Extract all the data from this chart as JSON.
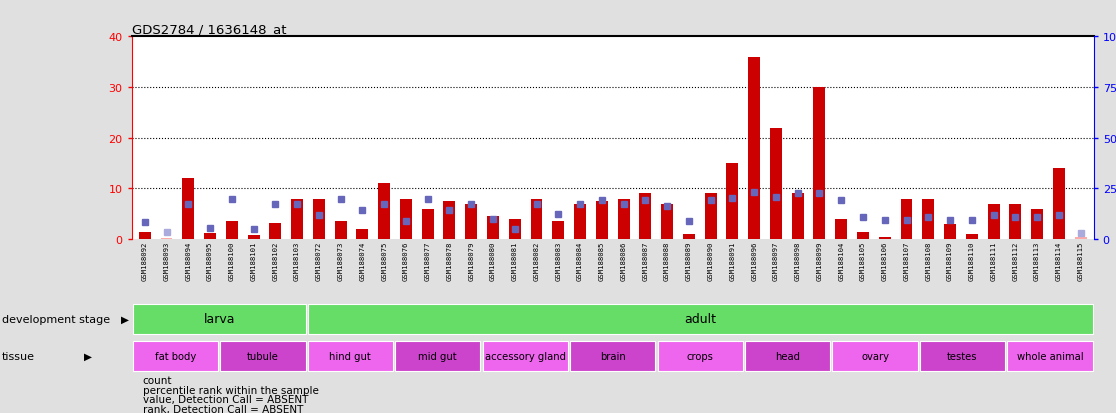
{
  "title": "GDS2784 / 1636148_at",
  "samples": [
    "GSM188092",
    "GSM188093",
    "GSM188094",
    "GSM188095",
    "GSM188100",
    "GSM188101",
    "GSM188102",
    "GSM188103",
    "GSM188072",
    "GSM188073",
    "GSM188074",
    "GSM188075",
    "GSM188076",
    "GSM188077",
    "GSM188078",
    "GSM188079",
    "GSM188080",
    "GSM188081",
    "GSM188082",
    "GSM188083",
    "GSM188084",
    "GSM188085",
    "GSM188086",
    "GSM188087",
    "GSM188088",
    "GSM188089",
    "GSM188090",
    "GSM188091",
    "GSM188096",
    "GSM188097",
    "GSM188098",
    "GSM188099",
    "GSM188104",
    "GSM188105",
    "GSM188106",
    "GSM188107",
    "GSM188108",
    "GSM188109",
    "GSM188110",
    "GSM188111",
    "GSM188112",
    "GSM188113",
    "GSM188114",
    "GSM188115"
  ],
  "counts": [
    1.5,
    0.3,
    12,
    1.2,
    3.5,
    0.8,
    3.2,
    8,
    8,
    3.5,
    2,
    11,
    8,
    6,
    7.5,
    7,
    4.5,
    4,
    8,
    3.5,
    7,
    7.5,
    8,
    9,
    7,
    1,
    9,
    15,
    36,
    22,
    9,
    30,
    4,
    1.5,
    0.5,
    8,
    8,
    3,
    1,
    7,
    7,
    6,
    14,
    0.5
  ],
  "ranks": [
    8.5,
    3.5,
    17.5,
    5.5,
    20,
    5,
    17.5,
    17.5,
    12,
    20,
    14.5,
    17.5,
    9,
    20,
    14.5,
    17.5,
    10,
    5,
    17.5,
    12.5,
    17.5,
    19.5,
    17.5,
    19.5,
    16.5,
    9,
    19.5,
    20.5,
    23,
    21,
    22.5,
    22.5,
    19.5,
    11,
    9.5,
    9.5,
    11,
    9.5,
    9.5,
    12,
    11,
    11,
    12,
    3
  ],
  "absent_mask": [
    false,
    true,
    false,
    false,
    false,
    false,
    false,
    false,
    false,
    false,
    false,
    false,
    false,
    false,
    false,
    false,
    false,
    false,
    false,
    false,
    false,
    false,
    false,
    false,
    false,
    false,
    false,
    false,
    false,
    false,
    false,
    false,
    false,
    false,
    false,
    false,
    false,
    false,
    false,
    false,
    false,
    false,
    false,
    true
  ],
  "development_stages": [
    {
      "label": "larva",
      "start": 0,
      "end": 8
    },
    {
      "label": "adult",
      "start": 8,
      "end": 44
    }
  ],
  "tissues": [
    {
      "label": "fat body",
      "start": 0,
      "end": 4
    },
    {
      "label": "tubule",
      "start": 4,
      "end": 8
    },
    {
      "label": "hind gut",
      "start": 8,
      "end": 12
    },
    {
      "label": "mid gut",
      "start": 12,
      "end": 16
    },
    {
      "label": "accessory gland",
      "start": 16,
      "end": 20
    },
    {
      "label": "brain",
      "start": 20,
      "end": 24
    },
    {
      "label": "crops",
      "start": 24,
      "end": 28
    },
    {
      "label": "head",
      "start": 28,
      "end": 32
    },
    {
      "label": "ovary",
      "start": 32,
      "end": 36
    },
    {
      "label": "testes",
      "start": 36,
      "end": 40
    },
    {
      "label": "whole animal",
      "start": 40,
      "end": 44
    }
  ],
  "count_color_present": "#cc0000",
  "count_color_absent": "#ffaaaa",
  "rank_color_present": "#6666bb",
  "rank_color_absent": "#aaaadd",
  "ylim_left": [
    0,
    40
  ],
  "ylim_right": [
    0,
    100
  ],
  "yticks_left": [
    0,
    10,
    20,
    30,
    40
  ],
  "yticks_right": [
    0,
    25,
    50,
    75,
    100
  ],
  "stage_color": "#66dd66",
  "tissue_color1": "#ee66ee",
  "tissue_color2": "#cc44cc",
  "plot_bg": "#ffffff",
  "xaxis_bg": "#d0d0d0",
  "fig_bg": "#e0e0e0"
}
